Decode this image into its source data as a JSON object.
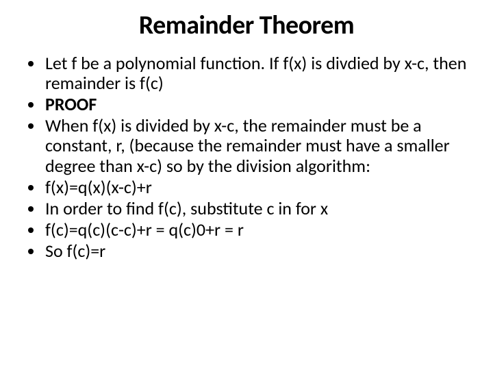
{
  "title": "Remainder Theorem",
  "bullets": [
    {
      "text": "Let f be a polynomial function.  If f(x) is divdied by x-c, then remainder is f(c)",
      "bold": false
    },
    {
      "text": "PROOF",
      "bold": true
    },
    {
      "text": "When f(x) is divided by x-c, the remainder must be a constant, r, (because the remainder must have a smaller degree than x-c) so by the division algorithm:",
      "bold": false
    },
    {
      "text": "f(x)=q(x)(x-c)+r",
      "bold": false
    },
    {
      "text": "In order to find f(c), substitute c in for x",
      "bold": false
    },
    {
      "text": "f(c)=q(c)(c-c)+r   =   q(c)0+r  =   r",
      "bold": false
    },
    {
      "text": "So f(c)=r",
      "bold": false
    }
  ],
  "style": {
    "background_color": "#ffffff",
    "text_color": "#000000",
    "title_fontsize": 38,
    "title_weight": 700,
    "body_fontsize": 26,
    "line_height": 1.12,
    "slide_width": 720,
    "slide_height": 540
  }
}
